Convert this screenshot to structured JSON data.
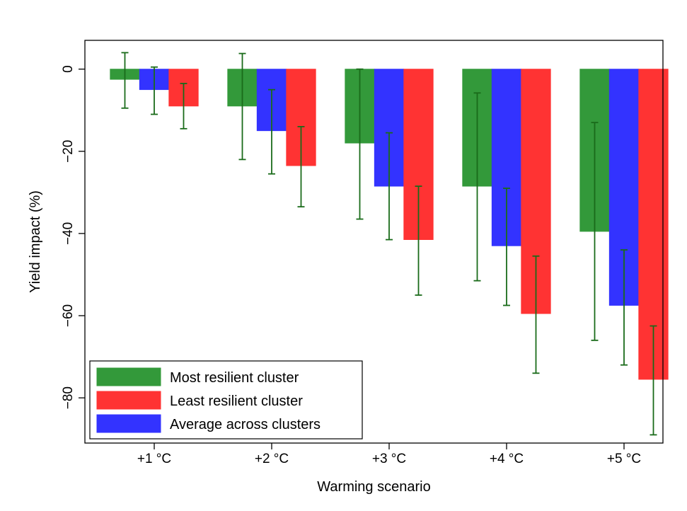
{
  "chart_data": {
    "type": "bar",
    "xlabel": "Warming scenario",
    "ylabel": "Yield impact (%)",
    "ylim": [
      -91,
      7
    ],
    "yticks": [
      0,
      -20,
      -40,
      -60,
      -80
    ],
    "categories": [
      "+1 °C",
      "+2 °C",
      "+3 °C",
      "+4 °C",
      "+5 °C"
    ],
    "series": [
      {
        "name": "Most resilient cluster",
        "color": "#33993a",
        "values": [
          -2.5,
          -9.0,
          -18.0,
          -28.5,
          -39.5
        ],
        "err_low": [
          -9.5,
          -22.0,
          -36.5,
          -51.5,
          -66.0
        ],
        "err_high": [
          4.0,
          3.8,
          0.0,
          -5.8,
          -13.0
        ]
      },
      {
        "name": "Average across clusters",
        "color": "#3333ff",
        "values": [
          -5.0,
          -15.0,
          -28.5,
          -43.0,
          -57.5
        ],
        "err_low": [
          -11.0,
          -25.5,
          -41.5,
          -57.5,
          -72.0
        ],
        "err_high": [
          0.5,
          -5.0,
          -15.5,
          -29.0,
          -44.0
        ]
      },
      {
        "name": "Least resilient cluster",
        "color": "#ff3333",
        "values": [
          -9.0,
          -23.5,
          -41.5,
          -59.5,
          -75.5
        ],
        "err_low": [
          -14.5,
          -33.5,
          -55.0,
          -74.0,
          -89.0
        ],
        "err_high": [
          -3.5,
          -14.0,
          -28.5,
          -45.5,
          -62.5
        ]
      }
    ],
    "errorbar_color": "#1a6b1a",
    "legend": {
      "placement": "bottom-left",
      "order": [
        "Most resilient cluster",
        "Least resilient cluster",
        "Average across clusters"
      ]
    },
    "grid": false
  }
}
